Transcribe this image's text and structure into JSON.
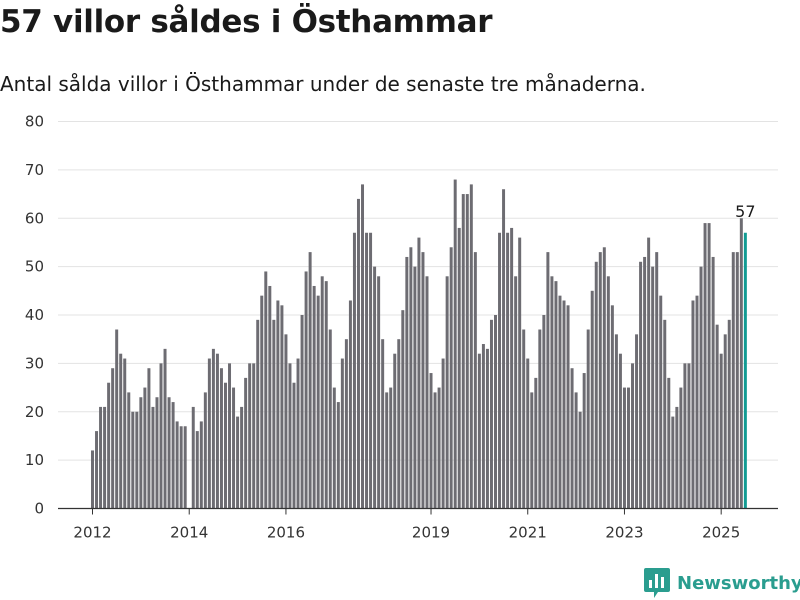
{
  "header": {
    "title": "57 villor såldes i Östhammar",
    "subtitle": "Antal sålda villor i Östhammar under de senaste tre månaderna."
  },
  "brand": {
    "name": "Newsworthy",
    "color": "#2a9d8f",
    "icon": "bar-chart-logo-icon"
  },
  "colors": {
    "bar": "#6d6c72",
    "highlight": "#119b93",
    "grid": "#e3e3e3",
    "axis": "#333333"
  },
  "chart_data": {
    "type": "bar",
    "title": "",
    "xlabel": "",
    "ylabel": "",
    "ylim": [
      0,
      80
    ],
    "yticks": [
      0,
      10,
      20,
      30,
      40,
      50,
      60,
      70,
      80
    ],
    "xticks": [
      "2012",
      "2014",
      "2016",
      "2019",
      "2021",
      "2023",
      "2025"
    ],
    "grid": true,
    "frequency": "monthly (rolling three-month count)",
    "period_start": "2012-01",
    "period_end": "2025-06",
    "values": [
      12,
      16,
      21,
      21,
      26,
      29,
      37,
      32,
      31,
      24,
      20,
      20,
      23,
      25,
      29,
      21,
      23,
      30,
      33,
      23,
      22,
      18,
      17,
      17,
      0,
      21,
      16,
      18,
      24,
      31,
      33,
      32,
      29,
      26,
      30,
      25,
      19,
      21,
      27,
      30,
      30,
      39,
      44,
      49,
      46,
      39,
      43,
      42,
      36,
      30,
      26,
      31,
      40,
      49,
      53,
      46,
      44,
      48,
      47,
      37,
      25,
      22,
      31,
      35,
      43,
      57,
      64,
      67,
      57,
      57,
      50,
      48,
      35,
      24,
      25,
      32,
      35,
      41,
      52,
      54,
      50,
      56,
      53,
      48,
      28,
      24,
      25,
      31,
      48,
      54,
      68,
      58,
      65,
      65,
      67,
      53,
      32,
      34,
      33,
      39,
      40,
      57,
      66,
      57,
      58,
      48,
      56,
      37,
      31,
      24,
      27,
      37,
      40,
      53,
      48,
      47,
      44,
      43,
      42,
      29,
      24,
      20,
      28,
      37,
      45,
      51,
      53,
      54,
      48,
      42,
      36,
      32,
      25,
      25,
      30,
      36,
      51,
      52,
      56,
      50,
      53,
      44,
      39,
      27,
      19,
      21,
      25,
      30,
      30,
      43,
      44,
      50,
      59,
      59,
      52,
      38,
      32,
      36,
      39,
      53,
      53,
      60
    ],
    "highlight": {
      "period": "2025-07",
      "value": 57,
      "label": "57"
    }
  }
}
